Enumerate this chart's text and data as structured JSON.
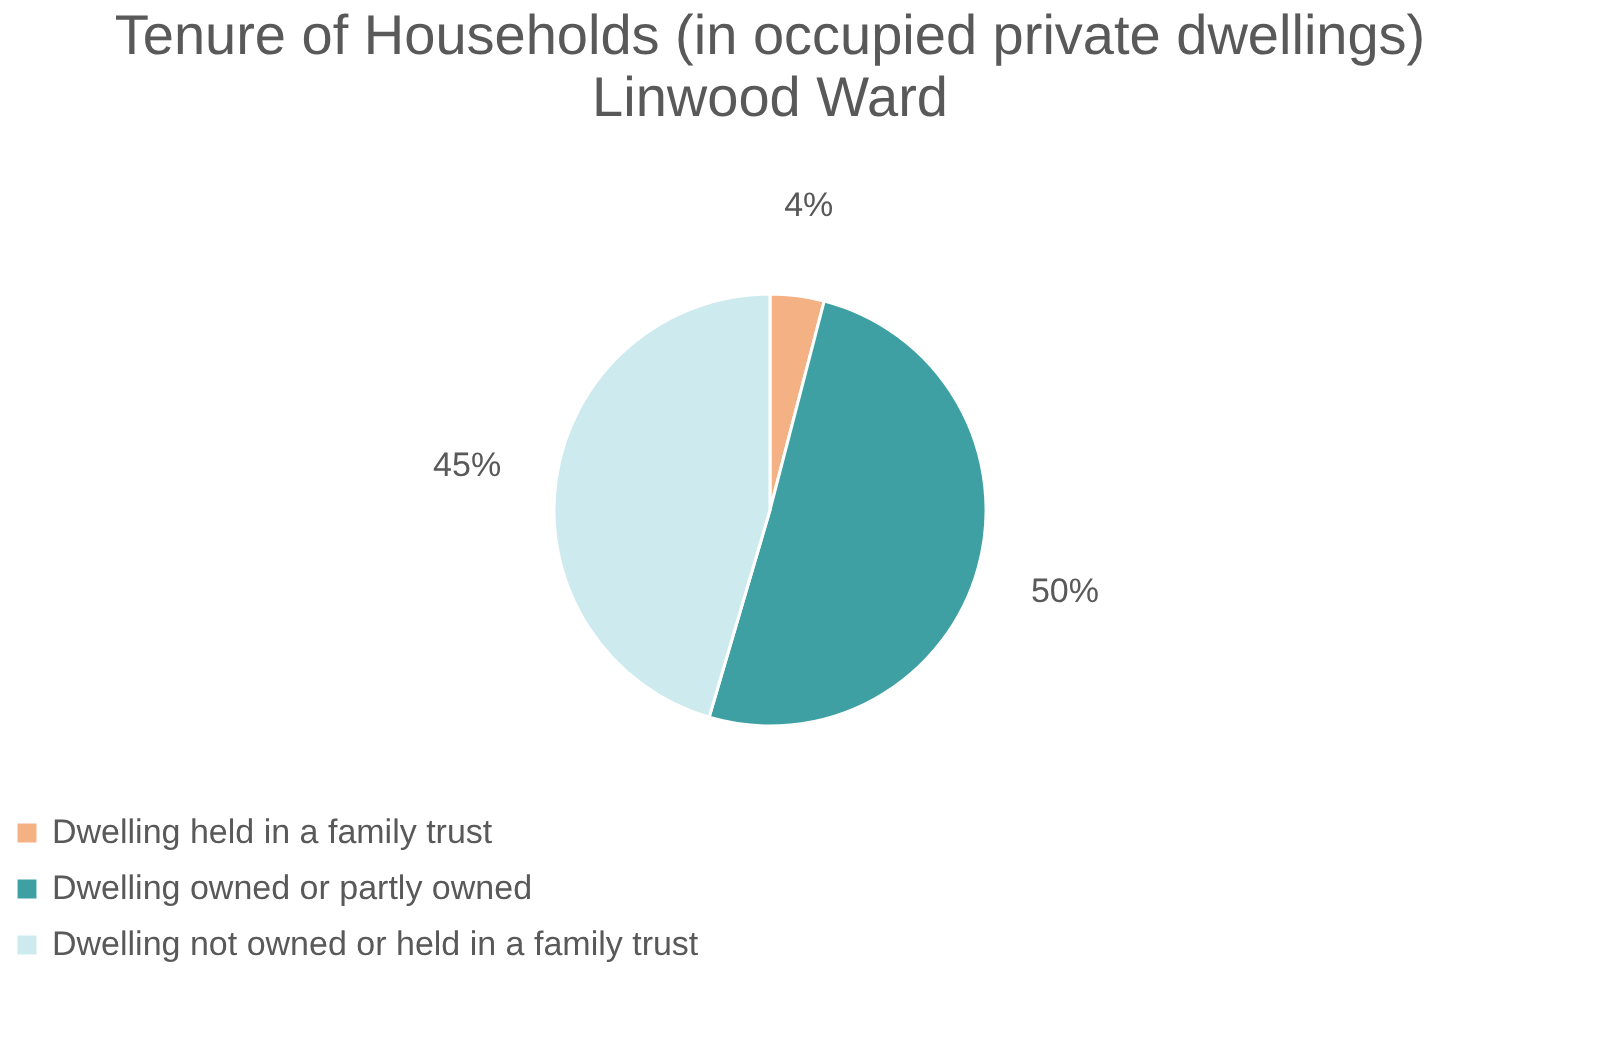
{
  "chart_data": {
    "type": "pie",
    "title": "Tenure of Households (in occupied private dwellings)",
    "subtitle": "Linwood Ward",
    "categories": [
      "Dwelling held in a family trust",
      "Dwelling owned or partly owned",
      "Dwelling not owned or held in a family trust"
    ],
    "values": [
      4,
      50,
      45
    ],
    "colors": [
      "#f4b183",
      "#3fa0a3",
      "#cdeaee"
    ],
    "value_labels": [
      "4%",
      "50%",
      "45%"
    ],
    "legend": "bottom"
  }
}
